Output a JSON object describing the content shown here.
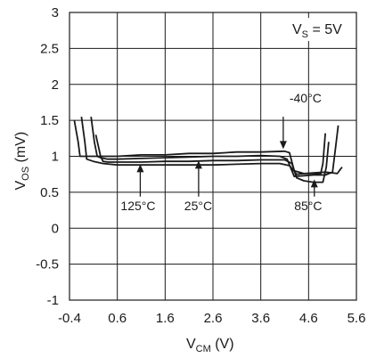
{
  "chart_data": {
    "type": "line",
    "xlabel": {
      "main": "V",
      "sub": "CM",
      "unit": " (V)"
    },
    "ylabel": {
      "main": "V",
      "sub": "OS",
      "unit": " (mV)"
    },
    "xlim": [
      -0.4,
      5.6
    ],
    "ylim": [
      -1,
      3
    ],
    "x_ticks": [
      "-0.4",
      "0.6",
      "1.6",
      "2.6",
      "3.6",
      "4.6",
      "5.6"
    ],
    "x_tick_values": [
      -0.4,
      0.6,
      1.6,
      2.6,
      3.6,
      4.6,
      5.6
    ],
    "y_ticks": [
      "3",
      "2.5",
      "2",
      "1.5",
      "1",
      "0.5",
      "0",
      "-0.5",
      "-1"
    ],
    "y_tick_values": [
      3,
      2.5,
      2,
      1.5,
      1,
      0.5,
      0,
      -0.5,
      -1
    ],
    "grid": true,
    "condition": {
      "main": "V",
      "sub": "S",
      "rest": " = 5V"
    },
    "series": [
      {
        "name": "-40°C",
        "x": [
          -0.3,
          -0.22,
          -0.18,
          -0.1,
          0.0,
          0.6,
          1.1,
          1.6,
          2.1,
          2.6,
          3.1,
          3.6,
          4.1,
          4.2,
          4.3,
          4.5,
          4.7,
          4.85,
          4.9,
          4.95
        ],
        "y": [
          1.5,
          1.2,
          1.0,
          1.0,
          1.0,
          1.0,
          1.02,
          1.02,
          1.04,
          1.04,
          1.06,
          1.06,
          1.07,
          1.05,
          0.8,
          0.76,
          0.76,
          0.75,
          0.9,
          1.32
        ]
      },
      {
        "name": "25°C",
        "x": [
          0.05,
          0.12,
          0.18,
          0.25,
          0.4,
          0.6,
          1.1,
          1.6,
          2.1,
          2.6,
          3.1,
          3.6,
          4.0,
          4.15,
          4.3,
          4.5,
          4.7,
          4.95,
          5.1,
          5.15,
          5.22
        ],
        "y": [
          1.55,
          1.2,
          1.0,
          0.98,
          0.96,
          0.96,
          0.97,
          0.98,
          0.99,
          1.0,
          1.0,
          1.01,
          1.0,
          0.96,
          0.72,
          0.73,
          0.74,
          0.74,
          0.78,
          1.05,
          1.43
        ]
      },
      {
        "name": "125°C",
        "x": [
          -0.15,
          -0.08,
          -0.04,
          0.1,
          0.3,
          0.6,
          1.1,
          1.6,
          2.1,
          2.6,
          3.1,
          3.6,
          4.0,
          4.2,
          4.35,
          4.5,
          4.7,
          4.95,
          5.1,
          5.2,
          5.3
        ],
        "y": [
          1.55,
          1.2,
          0.96,
          0.93,
          0.9,
          0.88,
          0.88,
          0.88,
          0.88,
          0.88,
          0.89,
          0.9,
          0.9,
          0.87,
          0.75,
          0.76,
          0.77,
          0.78,
          0.77,
          0.76,
          0.85
        ]
      },
      {
        "name": "85°C",
        "x": [
          0.15,
          0.25,
          0.3,
          0.4,
          0.6,
          1.1,
          1.6,
          2.1,
          2.6,
          3.1,
          3.6,
          4.1,
          4.25,
          4.35,
          4.5,
          4.7,
          4.9,
          4.97,
          5.02
        ],
        "y": [
          1.3,
          1.0,
          0.93,
          0.92,
          0.92,
          0.92,
          0.93,
          0.93,
          0.94,
          0.94,
          0.95,
          0.95,
          0.9,
          0.7,
          0.66,
          0.64,
          0.64,
          0.85,
          1.2
        ]
      }
    ],
    "annotations": [
      {
        "text": "-40°C",
        "label_x": 4.2,
        "label_y": 1.75,
        "tip_x": 4.07,
        "tip_y": 1.1,
        "tail_x": 4.07,
        "tail_y": 1.55
      },
      {
        "text": "125°C",
        "label_x": 0.67,
        "label_y": 0.25,
        "tip_x": 1.08,
        "tip_y": 0.89,
        "tail_x": 1.08,
        "tail_y": 0.44
      },
      {
        "text": "25°C",
        "label_x": 2.0,
        "label_y": 0.25,
        "tip_x": 2.3,
        "tip_y": 0.94,
        "tail_x": 2.3,
        "tail_y": 0.44
      },
      {
        "text": "85°C",
        "label_x": 4.3,
        "label_y": 0.25,
        "tip_x": 4.72,
        "tip_y": 0.68,
        "tail_x": 4.72,
        "tail_y": 0.44
      }
    ],
    "colors": {
      "lines": "#1a1a1a",
      "grid": "#1a1a1a"
    }
  }
}
